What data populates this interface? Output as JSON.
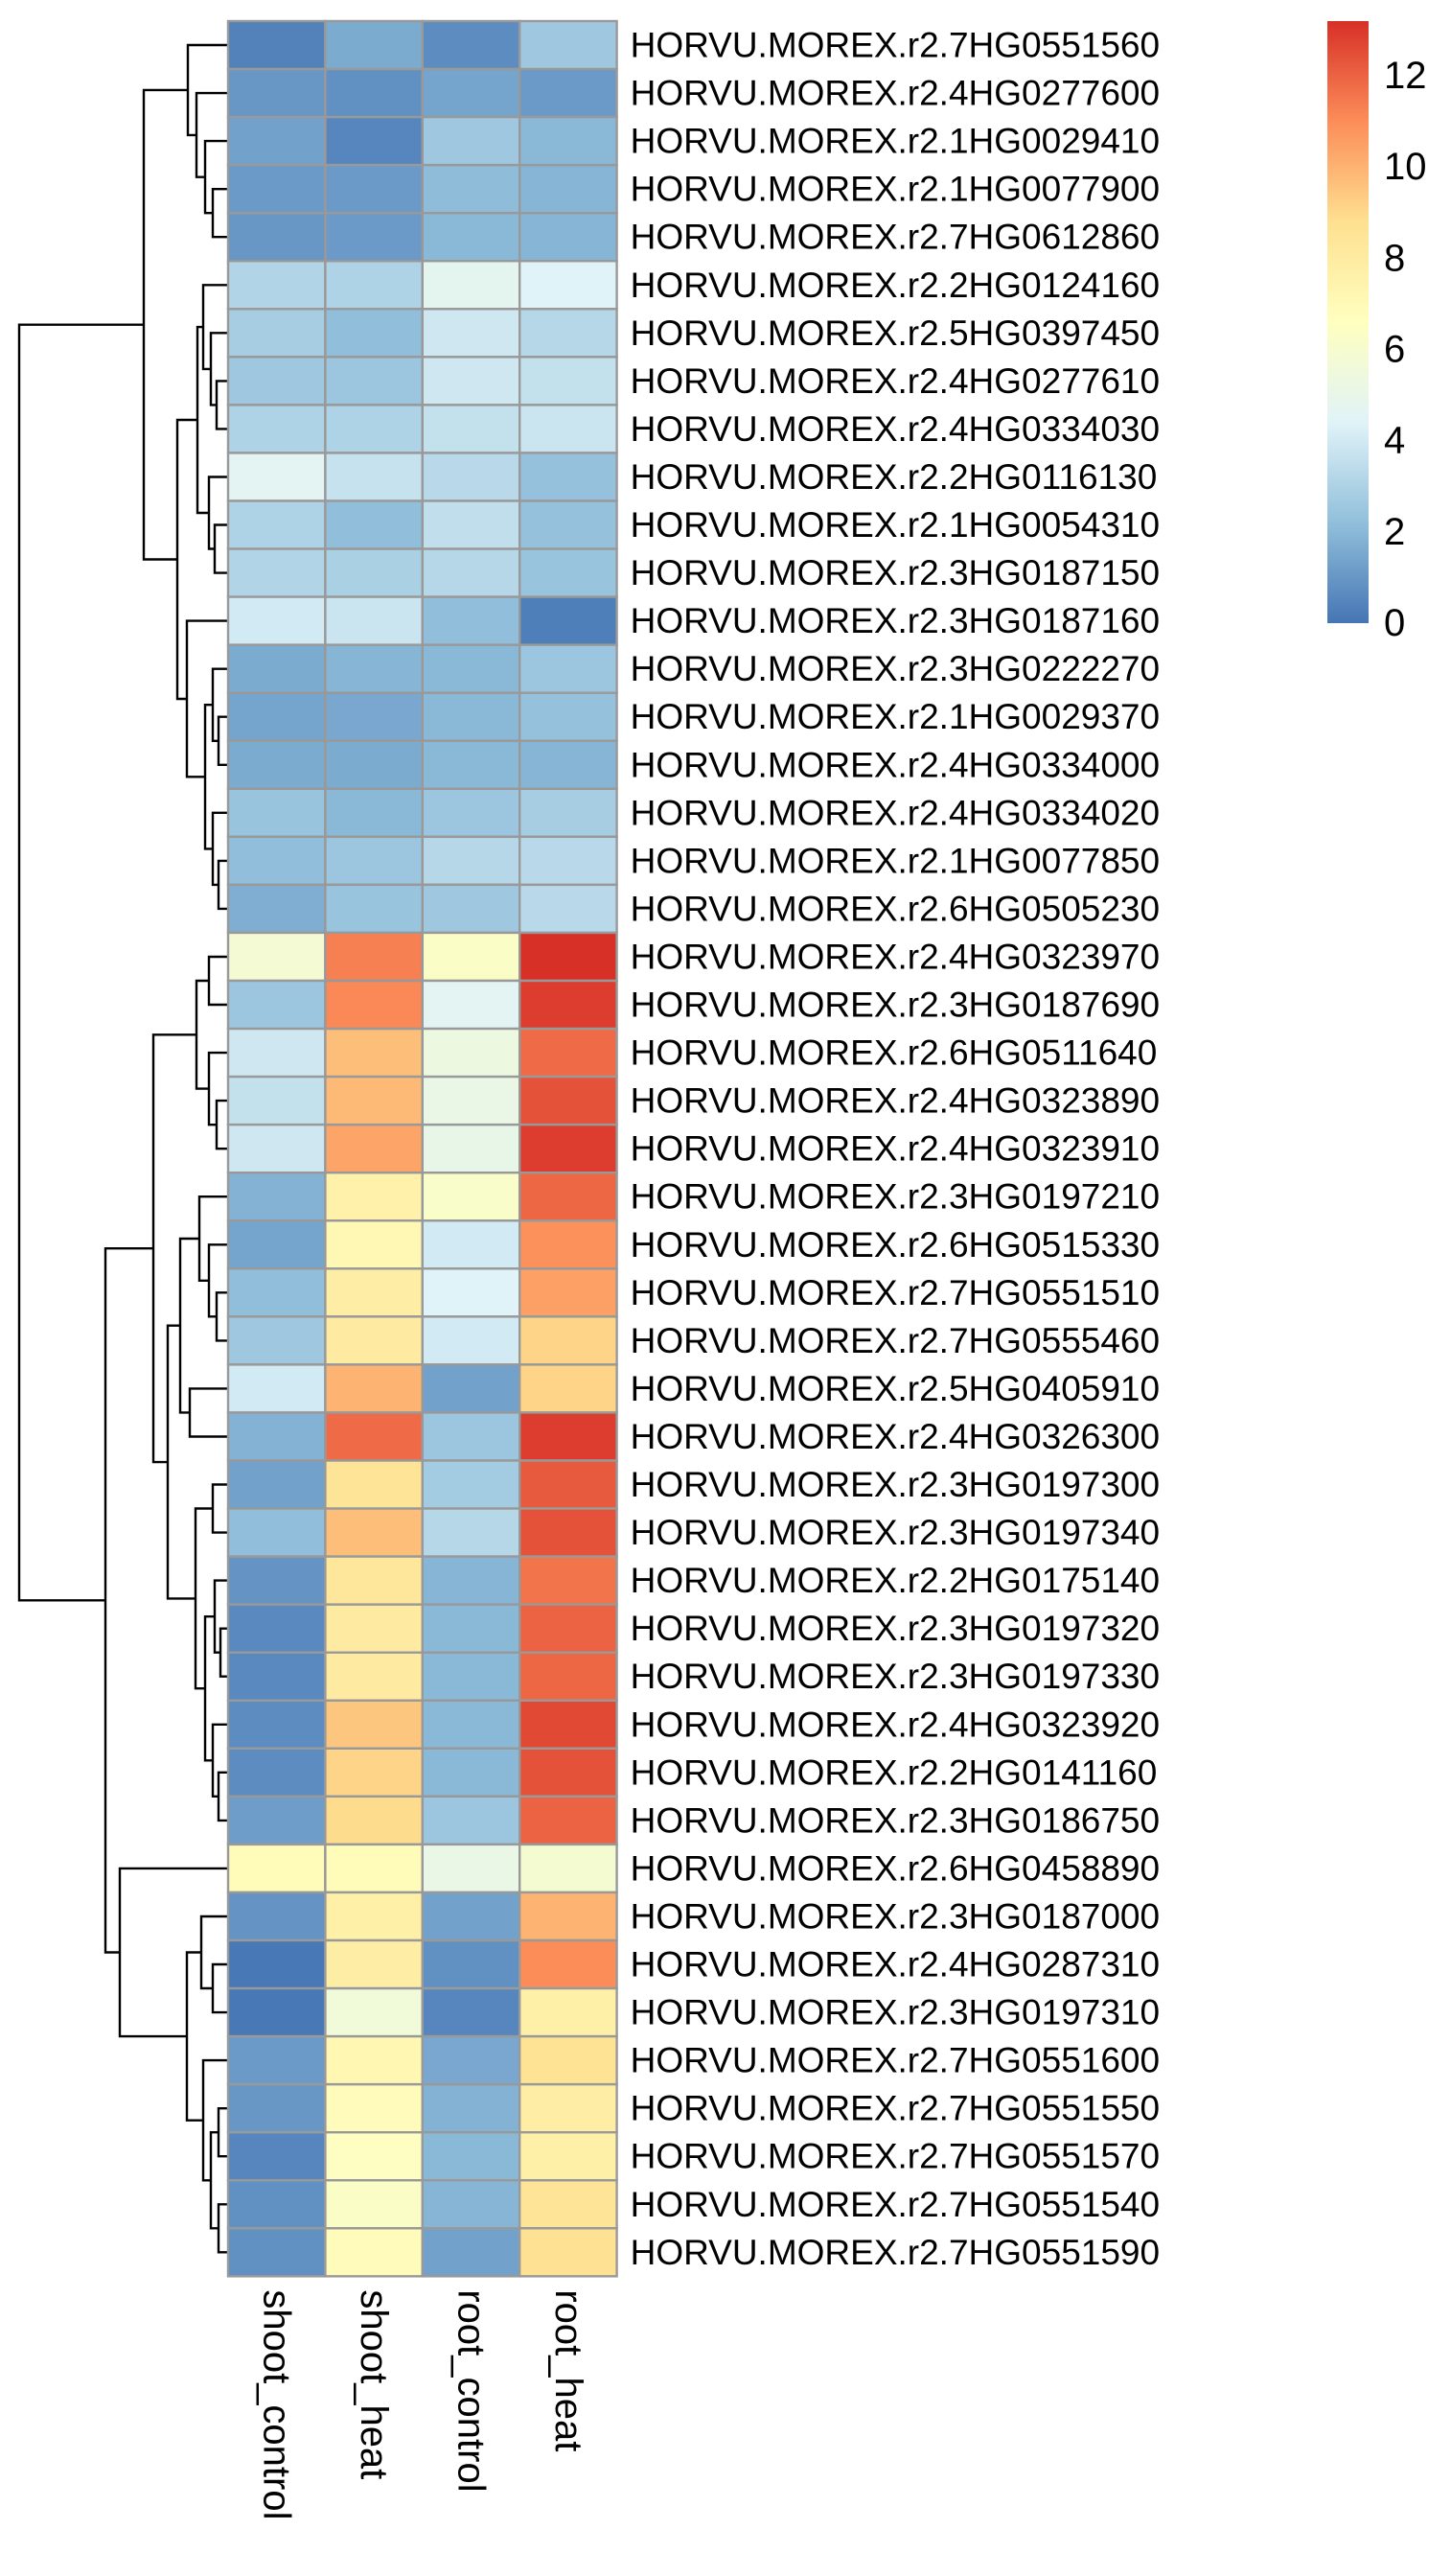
{
  "chart_data": {
    "type": "heatmap",
    "title": "",
    "xlabel": "",
    "ylabel": "",
    "columns": [
      "shoot_control",
      "shoot_heat",
      "root_control",
      "root_heat"
    ],
    "rows": [
      "HORVU.MOREX.r2.7HG0551560",
      "HORVU.MOREX.r2.4HG0277600",
      "HORVU.MOREX.r2.1HG0029410",
      "HORVU.MOREX.r2.1HG0077900",
      "HORVU.MOREX.r2.7HG0612860",
      "HORVU.MOREX.r2.2HG0124160",
      "HORVU.MOREX.r2.5HG0397450",
      "HORVU.MOREX.r2.4HG0277610",
      "HORVU.MOREX.r2.4HG0334030",
      "HORVU.MOREX.r2.2HG0116130",
      "HORVU.MOREX.r2.1HG0054310",
      "HORVU.MOREX.r2.3HG0187150",
      "HORVU.MOREX.r2.3HG0187160",
      "HORVU.MOREX.r2.3HG0222270",
      "HORVU.MOREX.r2.1HG0029370",
      "HORVU.MOREX.r2.4HG0334000",
      "HORVU.MOREX.r2.4HG0334020",
      "HORVU.MOREX.r2.1HG0077850",
      "HORVU.MOREX.r2.6HG0505230",
      "HORVU.MOREX.r2.4HG0323970",
      "HORVU.MOREX.r2.3HG0187690",
      "HORVU.MOREX.r2.6HG0511640",
      "HORVU.MOREX.r2.4HG0323890",
      "HORVU.MOREX.r2.4HG0323910",
      "HORVU.MOREX.r2.3HG0197210",
      "HORVU.MOREX.r2.6HG0515330",
      "HORVU.MOREX.r2.7HG0551510",
      "HORVU.MOREX.r2.7HG0555460",
      "HORVU.MOREX.r2.5HG0405910",
      "HORVU.MOREX.r2.4HG0326300",
      "HORVU.MOREX.r2.3HG0197300",
      "HORVU.MOREX.r2.3HG0197340",
      "HORVU.MOREX.r2.2HG0175140",
      "HORVU.MOREX.r2.3HG0197320",
      "HORVU.MOREX.r2.3HG0197330",
      "HORVU.MOREX.r2.4HG0323920",
      "HORVU.MOREX.r2.2HG0141160",
      "HORVU.MOREX.r2.3HG0186750",
      "HORVU.MOREX.r2.6HG0458890",
      "HORVU.MOREX.r2.3HG0187000",
      "HORVU.MOREX.r2.4HG0287310",
      "HORVU.MOREX.r2.3HG0197310",
      "HORVU.MOREX.r2.7HG0551600",
      "HORVU.MOREX.r2.7HG0551550",
      "HORVU.MOREX.r2.7HG0551570",
      "HORVU.MOREX.r2.7HG0551540",
      "HORVU.MOREX.r2.7HG0551590"
    ],
    "values": [
      [
        0.4,
        1.6,
        0.7,
        2.6
      ],
      [
        1.0,
        0.8,
        1.4,
        1.1
      ],
      [
        1.3,
        0.5,
        2.6,
        2.0
      ],
      [
        1.1,
        1.1,
        2.1,
        1.9
      ],
      [
        1.0,
        1.1,
        2.0,
        1.9
      ],
      [
        3.1,
        3.0,
        4.7,
        4.4
      ],
      [
        2.8,
        2.2,
        3.9,
        3.2
      ],
      [
        2.6,
        2.5,
        3.9,
        3.6
      ],
      [
        3.0,
        3.0,
        3.6,
        3.8
      ],
      [
        4.6,
        3.7,
        3.3,
        2.3
      ],
      [
        3.0,
        2.2,
        3.5,
        2.3
      ],
      [
        3.1,
        2.9,
        3.2,
        2.4
      ],
      [
        4.0,
        3.8,
        2.2,
        0.3
      ],
      [
        1.6,
        1.9,
        2.0,
        2.5
      ],
      [
        1.4,
        1.5,
        2.0,
        2.3
      ],
      [
        1.6,
        1.6,
        2.0,
        1.9
      ],
      [
        2.4,
        2.0,
        2.5,
        2.8
      ],
      [
        2.2,
        2.5,
        3.2,
        3.3
      ],
      [
        1.7,
        2.4,
        2.6,
        3.3
      ],
      [
        5.8,
        11.3,
        6.3,
        13.2
      ],
      [
        2.5,
        11.1,
        4.6,
        12.9
      ],
      [
        3.9,
        9.7,
        5.3,
        11.8
      ],
      [
        3.6,
        9.8,
        5.1,
        12.4
      ],
      [
        3.9,
        10.4,
        5.0,
        12.9
      ],
      [
        1.8,
        7.6,
        6.2,
        11.9
      ],
      [
        1.4,
        7.1,
        4.0,
        10.9
      ],
      [
        2.2,
        7.8,
        4.4,
        10.5
      ],
      [
        2.6,
        8.0,
        4.0,
        9.1
      ],
      [
        4.0,
        10.0,
        1.3,
        9.1
      ],
      [
        1.8,
        11.8,
        2.5,
        12.9
      ],
      [
        1.3,
        8.5,
        2.7,
        12.2
      ],
      [
        2.2,
        9.7,
        3.2,
        12.4
      ],
      [
        0.9,
        8.3,
        1.9,
        11.6
      ],
      [
        0.6,
        8.0,
        2.0,
        12.0
      ],
      [
        0.6,
        8.0,
        2.0,
        11.9
      ],
      [
        0.7,
        9.5,
        2.0,
        12.6
      ],
      [
        0.7,
        9.1,
        2.0,
        12.4
      ],
      [
        1.2,
        8.9,
        2.5,
        12.0
      ],
      [
        6.9,
        6.9,
        5.1,
        5.9
      ],
      [
        0.9,
        7.7,
        1.3,
        10.0
      ],
      [
        0.1,
        7.8,
        0.8,
        11.0
      ],
      [
        0.1,
        5.6,
        0.5,
        7.7
      ],
      [
        1.1,
        7.2,
        1.5,
        8.6
      ],
      [
        1.0,
        6.8,
        1.8,
        7.8
      ],
      [
        0.5,
        6.5,
        2.0,
        7.7
      ],
      [
        0.8,
        6.3,
        1.9,
        8.5
      ],
      [
        0.8,
        6.8,
        1.3,
        8.7
      ]
    ],
    "color_scale": {
      "min": 0,
      "max": 13.2,
      "colors": [
        "#4575b4",
        "#91bfdb",
        "#e0f3f8",
        "#ffffbf",
        "#fee090",
        "#fc8d59",
        "#d73027"
      ],
      "ticks": [
        "0",
        "2",
        "4",
        "6",
        "8",
        "10",
        "12"
      ]
    },
    "cell_border": "#999999",
    "row_dendrogram": true,
    "column_dendrogram": false,
    "legend_position": "top-right"
  }
}
